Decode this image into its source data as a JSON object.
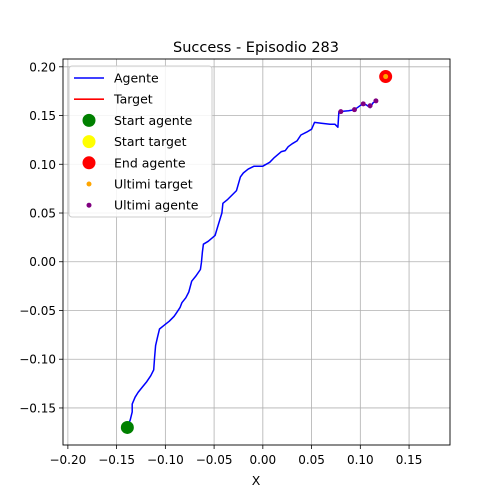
{
  "chart_data": {
    "type": "line",
    "title": "Success - Episodio 283",
    "xlabel": "X",
    "ylabel": "",
    "xlim": [
      -0.205,
      0.192
    ],
    "ylim": [
      -0.188,
      0.208
    ],
    "xticks": [
      -0.2,
      -0.15,
      -0.1,
      -0.05,
      0.0,
      0.05,
      0.1,
      0.15
    ],
    "xtick_labels": [
      "−0.20",
      "−0.15",
      "−0.10",
      "−0.05",
      "0.00",
      "0.05",
      "0.10",
      "0.15"
    ],
    "yticks": [
      -0.15,
      -0.1,
      -0.05,
      0.0,
      0.05,
      0.1,
      0.15,
      0.2
    ],
    "ytick_labels": [
      "−0.15",
      "−0.10",
      "−0.05",
      "0.00",
      "0.05",
      "0.10",
      "0.15",
      "0.20"
    ],
    "grid": true,
    "legend_placement": "top-left",
    "series": [
      {
        "name": "Agente",
        "kind": "line",
        "color": "#0000ff",
        "points": [
          [
            -0.139,
            -0.17
          ],
          [
            -0.136,
            -0.162
          ],
          [
            -0.134,
            -0.154
          ],
          [
            -0.134,
            -0.146
          ],
          [
            -0.131,
            -0.139
          ],
          [
            -0.128,
            -0.134
          ],
          [
            -0.124,
            -0.129
          ],
          [
            -0.119,
            -0.123
          ],
          [
            -0.115,
            -0.117
          ],
          [
            -0.112,
            -0.111
          ],
          [
            -0.111,
            -0.098
          ],
          [
            -0.11,
            -0.086
          ],
          [
            -0.108,
            -0.077
          ],
          [
            -0.106,
            -0.069
          ],
          [
            -0.101,
            -0.065
          ],
          [
            -0.096,
            -0.061
          ],
          [
            -0.091,
            -0.056
          ],
          [
            -0.089,
            -0.053
          ],
          [
            -0.085,
            -0.047
          ],
          [
            -0.083,
            -0.042
          ],
          [
            -0.079,
            -0.037
          ],
          [
            -0.076,
            -0.031
          ],
          [
            -0.073,
            -0.02
          ],
          [
            -0.069,
            -0.015
          ],
          [
            -0.064,
            -0.008
          ],
          [
            -0.063,
            -0.001
          ],
          [
            -0.062,
            0.01
          ],
          [
            -0.061,
            0.018
          ],
          [
            -0.056,
            0.021
          ],
          [
            -0.049,
            0.027
          ],
          [
            -0.046,
            0.037
          ],
          [
            -0.042,
            0.05
          ],
          [
            -0.041,
            0.06
          ],
          [
            -0.036,
            0.064
          ],
          [
            -0.027,
            0.073
          ],
          [
            -0.023,
            0.087
          ],
          [
            -0.02,
            0.091
          ],
          [
            -0.015,
            0.095
          ],
          [
            -0.009,
            0.098
          ],
          [
            0.0,
            0.098
          ],
          [
            0.007,
            0.102
          ],
          [
            0.012,
            0.107
          ],
          [
            0.019,
            0.113
          ],
          [
            0.023,
            0.114
          ],
          [
            0.026,
            0.118
          ],
          [
            0.03,
            0.121
          ],
          [
            0.035,
            0.124
          ],
          [
            0.039,
            0.13
          ],
          [
            0.045,
            0.133
          ],
          [
            0.05,
            0.136
          ],
          [
            0.053,
            0.143
          ],
          [
            0.06,
            0.142
          ],
          [
            0.069,
            0.141
          ],
          [
            0.074,
            0.141
          ],
          [
            0.077,
            0.138
          ],
          [
            0.078,
            0.154
          ],
          [
            0.088,
            0.155
          ],
          [
            0.094,
            0.156
          ],
          [
            0.101,
            0.161
          ],
          [
            0.106,
            0.161
          ],
          [
            0.11,
            0.158
          ],
          [
            0.113,
            0.163
          ],
          [
            0.116,
            0.165
          ]
        ]
      },
      {
        "name": "Target",
        "kind": "line",
        "color": "#ff0000",
        "points": []
      },
      {
        "name": "Start agente",
        "kind": "marker",
        "color": "#008000",
        "points": [
          [
            -0.139,
            -0.17
          ]
        ]
      },
      {
        "name": "Start target",
        "kind": "marker",
        "color": "#ffff00",
        "points": []
      },
      {
        "name": "End agente",
        "kind": "marker",
        "color": "#ff0000",
        "points": [
          [
            0.126,
            0.19
          ]
        ]
      },
      {
        "name": "Ultimi target",
        "kind": "small-marker",
        "color": "#ffa500",
        "points": [
          [
            0.126,
            0.19
          ]
        ]
      },
      {
        "name": "Ultimi agente",
        "kind": "small-marker",
        "color": "#800080",
        "points": [
          [
            0.08,
            0.154
          ],
          [
            0.094,
            0.156
          ],
          [
            0.103,
            0.162
          ],
          [
            0.11,
            0.16
          ],
          [
            0.116,
            0.165
          ]
        ]
      }
    ]
  }
}
